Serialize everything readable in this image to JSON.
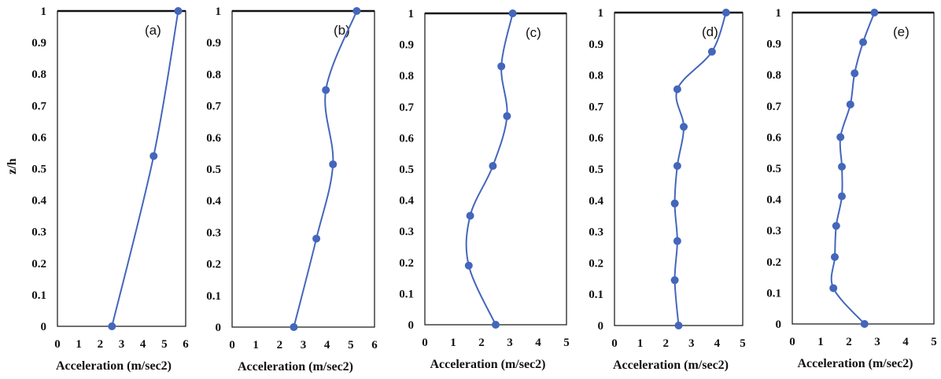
{
  "chart_data": [
    {
      "type": "line",
      "panel_label": "(a)",
      "xlabel": "Acceleration (m/sec2)",
      "ylabel": "z/h",
      "xlim": [
        0,
        6
      ],
      "ylim": [
        0,
        1
      ],
      "xticks": [
        "0",
        "1",
        "2",
        "3",
        "4",
        "5",
        "6"
      ],
      "yticks": [
        "0",
        "0.1",
        "0.2",
        "0.3",
        "0.4",
        "0.5",
        "0.6",
        "0.7",
        "0.8",
        "0.9",
        "1"
      ],
      "grid": false,
      "series": [
        {
          "color": "#4466bb",
          "x": [
            2.55,
            4.5,
            5.65
          ],
          "y": [
            0,
            0.54,
            1
          ]
        }
      ]
    },
    {
      "type": "line",
      "panel_label": "(b)",
      "xlabel": "Acceleration (m/sec2)",
      "ylabel": "",
      "xlim": [
        0,
        6
      ],
      "ylim": [
        0,
        1
      ],
      "xticks": [
        "0",
        "1",
        "2",
        "3",
        "4",
        "5",
        "6"
      ],
      "yticks": [
        "0",
        "0.1",
        "0.2",
        "0.3",
        "0.4",
        "0.5",
        "0.6",
        "0.7",
        "0.8",
        "0.9",
        "1"
      ],
      "grid": false,
      "series": [
        {
          "color": "#4466bb",
          "x": [
            2.6,
            3.55,
            4.25,
            3.95,
            5.25
          ],
          "y": [
            0,
            0.28,
            0.515,
            0.75,
            1
          ]
        }
      ]
    },
    {
      "type": "line",
      "panel_label": "(c)",
      "xlabel": "Acceleration (m/sec2)",
      "ylabel": "",
      "xlim": [
        0,
        5
      ],
      "ylim": [
        0,
        1
      ],
      "xticks": [
        "0",
        "1",
        "2",
        "3",
        "4",
        "5"
      ],
      "yticks": [
        "0",
        "0.1",
        "0.2",
        "0.3",
        "0.4",
        "0.5",
        "0.6",
        "0.7",
        "0.8",
        "0.9",
        "1"
      ],
      "grid": false,
      "series": [
        {
          "color": "#4466bb",
          "x": [
            2.5,
            1.55,
            1.6,
            2.4,
            2.9,
            2.7,
            3.1
          ],
          "y": [
            0,
            0.19,
            0.35,
            0.51,
            0.67,
            0.83,
            1
          ]
        }
      ]
    },
    {
      "type": "line",
      "panel_label": "(d)",
      "xlabel": "Acceleration (m/sec2)",
      "ylabel": "",
      "xlim": [
        0,
        5
      ],
      "ylim": [
        0,
        1
      ],
      "xticks": [
        "0",
        "1",
        "2",
        "3",
        "4",
        "5"
      ],
      "yticks": [
        "0",
        "0.1",
        "0.2",
        "0.3",
        "0.4",
        "0.5",
        "0.6",
        "0.7",
        "0.8",
        "0.9",
        "1"
      ],
      "grid": false,
      "series": [
        {
          "color": "#4466bb",
          "x": [
            2.5,
            2.35,
            2.45,
            2.35,
            2.45,
            2.7,
            2.45,
            3.8,
            4.35
          ],
          "y": [
            0,
            0.145,
            0.27,
            0.39,
            0.51,
            0.635,
            0.755,
            0.875,
            1
          ]
        }
      ]
    },
    {
      "type": "line",
      "panel_label": "(e)",
      "xlabel": "Acceleration (m/sec2)",
      "ylabel": "",
      "xlim": [
        0,
        5
      ],
      "ylim": [
        0,
        1
      ],
      "xticks": [
        "0",
        "1",
        "2",
        "3",
        "4",
        "5"
      ],
      "yticks": [
        "0",
        "0.1",
        "0.2",
        "0.3",
        "0.4",
        "0.5",
        "0.6",
        "0.7",
        "0.8",
        "0.9",
        "1"
      ],
      "grid": false,
      "series": [
        {
          "color": "#4466bb",
          "x": [
            2.55,
            1.45,
            1.5,
            1.55,
            1.75,
            1.75,
            1.7,
            2.05,
            2.2,
            2.5,
            2.9
          ],
          "y": [
            0,
            0.115,
            0.215,
            0.315,
            0.41,
            0.505,
            0.6,
            0.705,
            0.805,
            0.905,
            1
          ]
        }
      ]
    }
  ]
}
